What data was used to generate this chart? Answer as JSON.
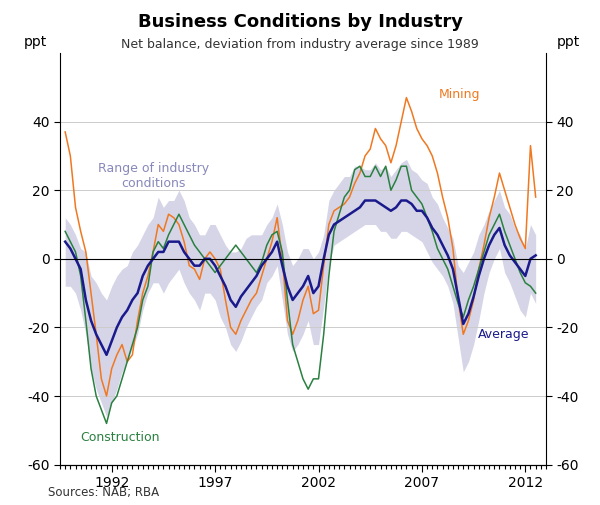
{
  "title": "Business Conditions by Industry",
  "subtitle": "Net balance, deviation from industry average since 1989",
  "ylabel_left": "ppt",
  "ylabel_right": "ppt",
  "source": "Sources: NAB; RBA",
  "ylim": [
    -60,
    60
  ],
  "yticks": [
    -60,
    -40,
    -20,
    0,
    20,
    40
  ],
  "background_color": "#ffffff",
  "band_color": "#8888bb",
  "band_alpha": 0.35,
  "mining_color": "#f07820",
  "construction_color": "#2a8040",
  "average_color": "#1a1a8c",
  "annotation_color_range": "#8888bb",
  "annotation_color_mining": "#f07820",
  "annotation_color_construction": "#2a8040",
  "annotation_color_average": "#1a1a8c",
  "dates": [
    1989.75,
    1990.0,
    1990.25,
    1990.5,
    1990.75,
    1991.0,
    1991.25,
    1991.5,
    1991.75,
    1992.0,
    1992.25,
    1992.5,
    1992.75,
    1993.0,
    1993.25,
    1993.5,
    1993.75,
    1994.0,
    1994.25,
    1994.5,
    1994.75,
    1995.0,
    1995.25,
    1995.5,
    1995.75,
    1996.0,
    1996.25,
    1996.5,
    1996.75,
    1997.0,
    1997.25,
    1997.5,
    1997.75,
    1998.0,
    1998.25,
    1998.5,
    1998.75,
    1999.0,
    1999.25,
    1999.5,
    1999.75,
    2000.0,
    2000.25,
    2000.5,
    2000.75,
    2001.0,
    2001.25,
    2001.5,
    2001.75,
    2002.0,
    2002.25,
    2002.5,
    2002.75,
    2003.0,
    2003.25,
    2003.5,
    2003.75,
    2004.0,
    2004.25,
    2004.5,
    2004.75,
    2005.0,
    2005.25,
    2005.5,
    2005.75,
    2006.0,
    2006.25,
    2006.5,
    2006.75,
    2007.0,
    2007.25,
    2007.5,
    2007.75,
    2008.0,
    2008.25,
    2008.5,
    2008.75,
    2009.0,
    2009.25,
    2009.5,
    2009.75,
    2010.0,
    2010.25,
    2010.5,
    2010.75,
    2011.0,
    2011.25,
    2011.5,
    2011.75,
    2012.0,
    2012.25,
    2012.5
  ],
  "mining": [
    37,
    30,
    15,
    8,
    2,
    -10,
    -22,
    -35,
    -40,
    -32,
    -28,
    -25,
    -30,
    -28,
    -18,
    -10,
    -5,
    2,
    10,
    8,
    13,
    12,
    10,
    5,
    -2,
    -3,
    -6,
    0,
    2,
    0,
    -3,
    -12,
    -20,
    -22,
    -18,
    -15,
    -12,
    -10,
    -5,
    0,
    5,
    12,
    0,
    -18,
    -22,
    -18,
    -12,
    -8,
    -16,
    -15,
    -2,
    10,
    14,
    15,
    16,
    18,
    22,
    25,
    30,
    32,
    38,
    35,
    33,
    28,
    33,
    40,
    47,
    43,
    38,
    35,
    33,
    30,
    25,
    18,
    12,
    3,
    -12,
    -22,
    -18,
    -12,
    -3,
    4,
    12,
    18,
    25,
    20,
    15,
    10,
    6,
    3,
    33,
    18
  ],
  "construction": [
    8,
    5,
    2,
    -5,
    -18,
    -32,
    -40,
    -44,
    -48,
    -42,
    -40,
    -35,
    -30,
    -25,
    -20,
    -12,
    -8,
    2,
    5,
    3,
    7,
    10,
    13,
    10,
    7,
    4,
    2,
    0,
    -2,
    -4,
    -2,
    0,
    2,
    4,
    2,
    0,
    -2,
    -4,
    -1,
    4,
    7,
    8,
    2,
    -12,
    -25,
    -30,
    -35,
    -38,
    -35,
    -35,
    -22,
    -5,
    8,
    13,
    18,
    20,
    26,
    27,
    24,
    24,
    27,
    24,
    27,
    20,
    23,
    27,
    27,
    20,
    18,
    16,
    12,
    8,
    3,
    0,
    -3,
    -8,
    -13,
    -17,
    -12,
    -8,
    -3,
    2,
    7,
    10,
    13,
    8,
    4,
    0,
    -4,
    -7,
    -8,
    -10
  ],
  "average": [
    5,
    3,
    0,
    -3,
    -12,
    -18,
    -22,
    -25,
    -28,
    -24,
    -20,
    -17,
    -15,
    -12,
    -10,
    -5,
    -2,
    0,
    2,
    2,
    5,
    5,
    5,
    2,
    0,
    -2,
    -2,
    0,
    0,
    -2,
    -5,
    -8,
    -12,
    -14,
    -11,
    -9,
    -7,
    -5,
    -2,
    0,
    2,
    5,
    -2,
    -8,
    -12,
    -10,
    -8,
    -5,
    -10,
    -8,
    0,
    7,
    10,
    11,
    12,
    13,
    14,
    15,
    17,
    17,
    17,
    16,
    15,
    14,
    15,
    17,
    17,
    16,
    14,
    14,
    12,
    9,
    7,
    4,
    1,
    -3,
    -11,
    -19,
    -16,
    -11,
    -5,
    0,
    4,
    7,
    9,
    4,
    1,
    -1,
    -3,
    -5,
    0,
    1
  ],
  "band_upper": [
    12,
    10,
    7,
    3,
    2,
    -5,
    -7,
    -10,
    -12,
    -8,
    -5,
    -3,
    -2,
    2,
    4,
    7,
    10,
    12,
    18,
    15,
    17,
    17,
    20,
    17,
    12,
    10,
    7,
    7,
    10,
    10,
    7,
    4,
    2,
    2,
    3,
    6,
    7,
    7,
    7,
    10,
    12,
    16,
    10,
    2,
    -2,
    0,
    3,
    3,
    0,
    2,
    7,
    17,
    20,
    22,
    24,
    24,
    27,
    27,
    26,
    26,
    28,
    26,
    27,
    24,
    26,
    28,
    29,
    26,
    25,
    23,
    22,
    18,
    16,
    12,
    9,
    6,
    -2,
    -4,
    -1,
    2,
    7,
    10,
    14,
    17,
    20,
    15,
    13,
    9,
    7,
    3,
    10,
    7
  ],
  "band_lower": [
    -8,
    -8,
    -10,
    -15,
    -22,
    -32,
    -38,
    -42,
    -46,
    -42,
    -38,
    -33,
    -30,
    -26,
    -22,
    -15,
    -10,
    -7,
    -7,
    -10,
    -7,
    -5,
    -3,
    -7,
    -10,
    -12,
    -15,
    -10,
    -10,
    -12,
    -17,
    -20,
    -25,
    -27,
    -24,
    -20,
    -17,
    -14,
    -12,
    -7,
    -5,
    -2,
    -12,
    -22,
    -27,
    -25,
    -22,
    -18,
    -25,
    -25,
    -14,
    -2,
    4,
    5,
    6,
    7,
    8,
    9,
    10,
    10,
    10,
    8,
    8,
    6,
    6,
    8,
    8,
    7,
    6,
    5,
    2,
    -1,
    -3,
    -5,
    -8,
    -13,
    -23,
    -33,
    -30,
    -25,
    -18,
    -10,
    -4,
    0,
    3,
    -4,
    -7,
    -11,
    -15,
    -17,
    -10,
    -13
  ],
  "xticks": [
    1992,
    1997,
    2002,
    2007,
    2012
  ],
  "xlim": [
    1989.5,
    2013.0
  ]
}
